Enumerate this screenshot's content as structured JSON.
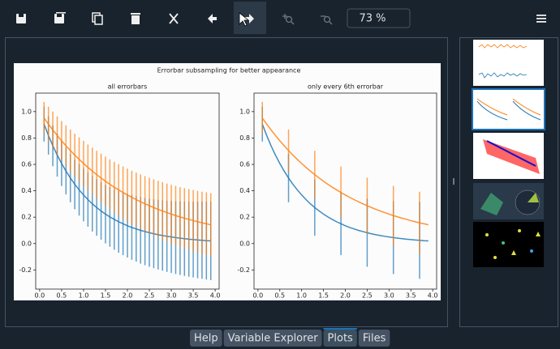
{
  "toolbar": {
    "zoom": "73 %"
  },
  "tabs": [
    {
      "label": "Help"
    },
    {
      "label": "Variable Explorer"
    },
    {
      "label": "Plots",
      "active": true
    },
    {
      "label": "Files"
    }
  ],
  "chart_data": {
    "type": "errorbar",
    "title": "Errorbar subsampling for better appearance",
    "subplots": [
      {
        "title": "all errorbars",
        "errorevery": 1
      },
      {
        "title": "only every 6th errorbar",
        "errorevery": 6
      }
    ],
    "x": [
      0.1,
      0.2,
      0.3,
      0.4,
      0.5,
      0.6,
      0.7,
      0.8,
      0.9,
      1.0,
      1.1,
      1.2,
      1.3,
      1.4,
      1.5,
      1.6,
      1.7,
      1.8,
      1.9,
      2.0,
      2.1,
      2.2,
      2.3,
      2.4,
      2.5,
      2.6,
      2.7,
      2.8,
      2.9,
      3.0,
      3.1,
      3.2,
      3.3,
      3.4,
      3.5,
      3.6,
      3.7,
      3.8,
      3.9
    ],
    "series": [
      {
        "color": "#1f77b4",
        "values": [
          0.905,
          0.819,
          0.741,
          0.67,
          0.607,
          0.549,
          0.497,
          0.449,
          0.407,
          0.368,
          0.333,
          0.301,
          0.273,
          0.247,
          0.223,
          0.202,
          0.183,
          0.165,
          0.15,
          0.135,
          0.122,
          0.111,
          0.1,
          0.091,
          0.082,
          0.074,
          0.067,
          0.061,
          0.055,
          0.05,
          0.045,
          0.041,
          0.037,
          0.033,
          0.03,
          0.027,
          0.025,
          0.022,
          0.02
        ],
        "errors": [
          0.132,
          0.145,
          0.155,
          0.163,
          0.171,
          0.177,
          0.184,
          0.189,
          0.195,
          0.2,
          0.205,
          0.21,
          0.214,
          0.218,
          0.222,
          0.226,
          0.23,
          0.234,
          0.238,
          0.241,
          0.245,
          0.248,
          0.252,
          0.255,
          0.258,
          0.261,
          0.264,
          0.267,
          0.27,
          0.273,
          0.276,
          0.279,
          0.282,
          0.284,
          0.287,
          0.29,
          0.292,
          0.295,
          0.297
        ]
      },
      {
        "color": "#ff7f0e",
        "values": [
          0.951,
          0.905,
          0.861,
          0.819,
          0.779,
          0.741,
          0.705,
          0.67,
          0.638,
          0.607,
          0.577,
          0.549,
          0.522,
          0.497,
          0.472,
          0.449,
          0.427,
          0.407,
          0.387,
          0.368,
          0.35,
          0.333,
          0.317,
          0.301,
          0.287,
          0.273,
          0.259,
          0.247,
          0.235,
          0.223,
          0.212,
          0.202,
          0.192,
          0.183,
          0.174,
          0.165,
          0.157,
          0.15,
          0.142
        ],
        "errors": [
          0.122,
          0.132,
          0.139,
          0.145,
          0.15,
          0.155,
          0.159,
          0.163,
          0.167,
          0.171,
          0.174,
          0.177,
          0.181,
          0.184,
          0.187,
          0.189,
          0.192,
          0.195,
          0.197,
          0.2,
          0.202,
          0.205,
          0.207,
          0.21,
          0.212,
          0.214,
          0.216,
          0.218,
          0.22,
          0.222,
          0.225,
          0.226,
          0.228,
          0.23,
          0.232,
          0.234,
          0.236,
          0.238,
          0.24
        ]
      }
    ],
    "xlim": [
      -0.09,
      4.09
    ],
    "ylim": [
      -0.345,
      1.14
    ],
    "xticks": [
      {
        "value": 0,
        "label": "0.0"
      },
      0.5,
      {
        "value": 1,
        "label": "1.0"
      },
      1.5,
      {
        "value": 2,
        "label": "2.0"
      },
      2.5,
      {
        "value": 3,
        "label": "3.0"
      },
      3.5,
      {
        "value": 4,
        "label": "4.0"
      }
    ],
    "yticks": [
      -0.2,
      {
        "value": 0,
        "label": "0.0"
      },
      0.2,
      0.4,
      0.6,
      0.8,
      {
        "value": 1,
        "label": "1.0"
      }
    ]
  }
}
